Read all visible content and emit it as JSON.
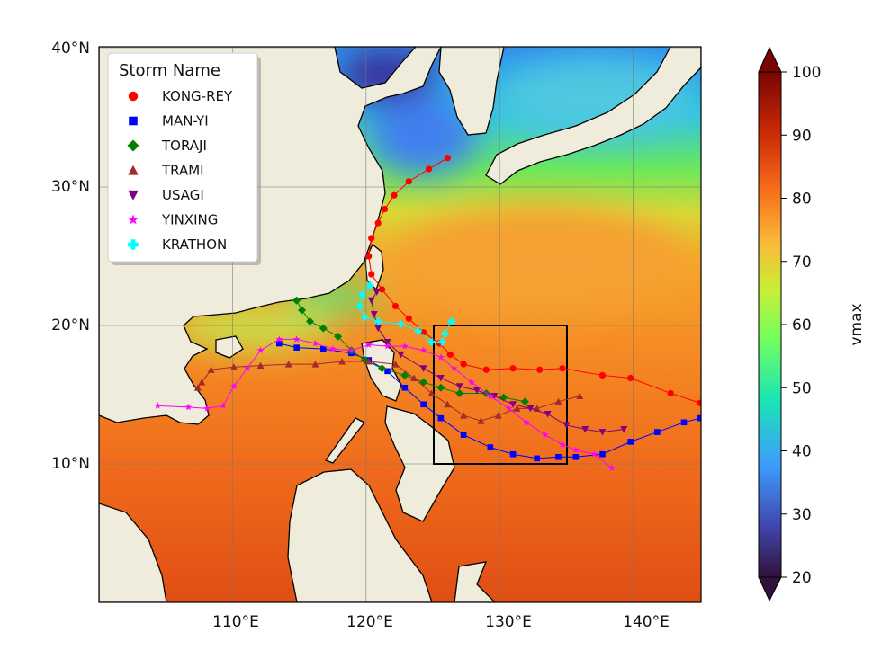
{
  "chart_data": {
    "type": "map",
    "extent": {
      "lon": [
        100,
        145
      ],
      "lat": [
        0,
        40
      ]
    },
    "grid": true,
    "x_ticks": [
      "110°E",
      "120°E",
      "130°E",
      "140°E"
    ],
    "x_tick_values": [
      110,
      120,
      130,
      140
    ],
    "y_ticks": [
      "10°N",
      "20°N",
      "30°N",
      "40°N"
    ],
    "y_tick_values": [
      10,
      20,
      30,
      40
    ],
    "field": {
      "description_colorbar_label": "vmax",
      "range": [
        20,
        100
      ],
      "colormap": "turbo",
      "extend": "both"
    },
    "colorbar": {
      "label": "vmax",
      "ticks": [
        "20",
        "30",
        "40",
        "50",
        "60",
        "70",
        "80",
        "90",
        "100"
      ],
      "tick_values": [
        20,
        30,
        40,
        50,
        60,
        70,
        80,
        90,
        100
      ]
    },
    "box": {
      "lon": [
        125,
        135
      ],
      "lat": [
        10,
        20
      ],
      "color": "#000000"
    },
    "legend": {
      "title": "Storm Name",
      "position": "top-left"
    },
    "storms": [
      {
        "name": "KONG-REY",
        "marker": "circle",
        "color": "#ff0000",
        "track": [
          [
            145,
            14.4
          ],
          [
            142.8,
            15.1
          ],
          [
            139.8,
            16.2
          ],
          [
            137.7,
            16.4
          ],
          [
            134.7,
            16.9
          ],
          [
            133,
            16.8
          ],
          [
            131,
            16.9
          ],
          [
            129,
            16.8
          ],
          [
            127.3,
            17.2
          ],
          [
            126.3,
            17.9
          ],
          [
            125.5,
            18.7
          ],
          [
            124.3,
            19.5
          ],
          [
            123.2,
            20.5
          ],
          [
            122.2,
            21.4
          ],
          [
            121.2,
            22.6
          ],
          [
            120.4,
            23.7
          ],
          [
            120.2,
            25
          ],
          [
            120.4,
            26.3
          ],
          [
            120.9,
            27.4
          ],
          [
            121.4,
            28.4
          ],
          [
            122.1,
            29.4
          ],
          [
            123.2,
            30.4
          ],
          [
            124.7,
            31.3
          ],
          [
            126.1,
            32.1
          ]
        ]
      },
      {
        "name": "MAN-YI",
        "marker": "square",
        "color": "#0000ff",
        "track": [
          [
            145,
            13.3
          ],
          [
            143.8,
            13
          ],
          [
            141.8,
            12.3
          ],
          [
            139.8,
            11.6
          ],
          [
            137.7,
            10.7
          ],
          [
            135.7,
            10.5
          ],
          [
            134.4,
            10.5
          ],
          [
            132.8,
            10.4
          ],
          [
            131,
            10.7
          ],
          [
            129.3,
            11.2
          ],
          [
            127.3,
            12.1
          ],
          [
            125.6,
            13.3
          ],
          [
            124.3,
            14.3
          ],
          [
            122.9,
            15.5
          ],
          [
            121.6,
            16.7
          ],
          [
            120.2,
            17.5
          ],
          [
            118.9,
            18
          ],
          [
            116.8,
            18.3
          ],
          [
            114.8,
            18.4
          ],
          [
            113.5,
            18.7
          ]
        ]
      },
      {
        "name": "TORAJI",
        "marker": "diamond",
        "color": "#008000",
        "track": [
          [
            131.9,
            14.5
          ],
          [
            130.3,
            14.8
          ],
          [
            129,
            15.1
          ],
          [
            127,
            15.1
          ],
          [
            125.6,
            15.5
          ],
          [
            124.3,
            15.9
          ],
          [
            122.9,
            16.4
          ],
          [
            121.2,
            16.9
          ],
          [
            119.9,
            17.5
          ],
          [
            118.9,
            18.2
          ],
          [
            117.9,
            19.2
          ],
          [
            116.8,
            19.8
          ],
          [
            115.8,
            20.3
          ],
          [
            115.2,
            21.1
          ],
          [
            114.8,
            21.8
          ]
        ]
      },
      {
        "name": "TRAMI",
        "marker": "triangle-up",
        "color": "#a52a2a",
        "track": [
          [
            136,
            14.9
          ],
          [
            134.4,
            14.5
          ],
          [
            132.8,
            14
          ],
          [
            131.3,
            14
          ],
          [
            129.9,
            13.5
          ],
          [
            128.6,
            13.1
          ],
          [
            127.3,
            13.5
          ],
          [
            126.1,
            14.3
          ],
          [
            124.9,
            15.1
          ],
          [
            123.6,
            16.2
          ],
          [
            122.2,
            17.2
          ],
          [
            120.2,
            17.4
          ],
          [
            118.2,
            17.4
          ],
          [
            116.2,
            17.2
          ],
          [
            114.2,
            17.2
          ],
          [
            112.1,
            17.1
          ],
          [
            110.1,
            17
          ],
          [
            108.4,
            16.8
          ],
          [
            107.7,
            15.9
          ],
          [
            107.4,
            15.5
          ]
        ]
      },
      {
        "name": "USAGI",
        "marker": "triangle-down",
        "color": "#800080",
        "track": [
          [
            139.3,
            12.5
          ],
          [
            137.7,
            12.3
          ],
          [
            136.4,
            12.5
          ],
          [
            135,
            12.8
          ],
          [
            133.6,
            13.6
          ],
          [
            132.3,
            14
          ],
          [
            131,
            14.3
          ],
          [
            129.6,
            14.9
          ],
          [
            128.3,
            15.3
          ],
          [
            127,
            15.6
          ],
          [
            125.6,
            16.2
          ],
          [
            124.3,
            16.9
          ],
          [
            122.6,
            17.9
          ],
          [
            121.6,
            18.8
          ],
          [
            120.9,
            19.8
          ],
          [
            120.6,
            20.8
          ],
          [
            120.4,
            21.8
          ],
          [
            120.8,
            22.4
          ]
        ]
      },
      {
        "name": "YINXING",
        "marker": "star",
        "color": "#ff00ff",
        "track": [
          [
            138.4,
            9.7
          ],
          [
            137.1,
            10.7
          ],
          [
            135.7,
            11
          ],
          [
            134.7,
            11.4
          ],
          [
            133.4,
            12.1
          ],
          [
            132,
            13
          ],
          [
            130.7,
            14
          ],
          [
            129.3,
            14.9
          ],
          [
            127.9,
            15.9
          ],
          [
            126.6,
            16.9
          ],
          [
            125.6,
            17.7
          ],
          [
            124.3,
            18.2
          ],
          [
            122.9,
            18.5
          ],
          [
            121.6,
            18.5
          ],
          [
            120.2,
            18.6
          ],
          [
            118.9,
            18.2
          ],
          [
            117.5,
            18.3
          ],
          [
            116.2,
            18.7
          ],
          [
            114.8,
            19
          ],
          [
            113.5,
            19
          ],
          [
            112.1,
            18.2
          ],
          [
            111.1,
            16.9
          ],
          [
            110.1,
            15.6
          ],
          [
            109.3,
            14.2
          ],
          [
            108.1,
            14
          ],
          [
            106.7,
            14.1
          ],
          [
            104.4,
            14.2
          ]
        ]
      },
      {
        "name": "KRATHON",
        "marker": "plus",
        "color": "#00ffff",
        "track": [
          [
            126.4,
            20.3
          ],
          [
            125.9,
            19.4
          ],
          [
            125.7,
            18.8
          ],
          [
            124.9,
            18.8
          ],
          [
            123.9,
            19.6
          ],
          [
            122.6,
            20.1
          ],
          [
            120.9,
            20.3
          ],
          [
            119.9,
            20.6
          ],
          [
            119.5,
            21.4
          ],
          [
            119.7,
            22.2
          ],
          [
            120.3,
            22.9
          ]
        ]
      }
    ]
  }
}
